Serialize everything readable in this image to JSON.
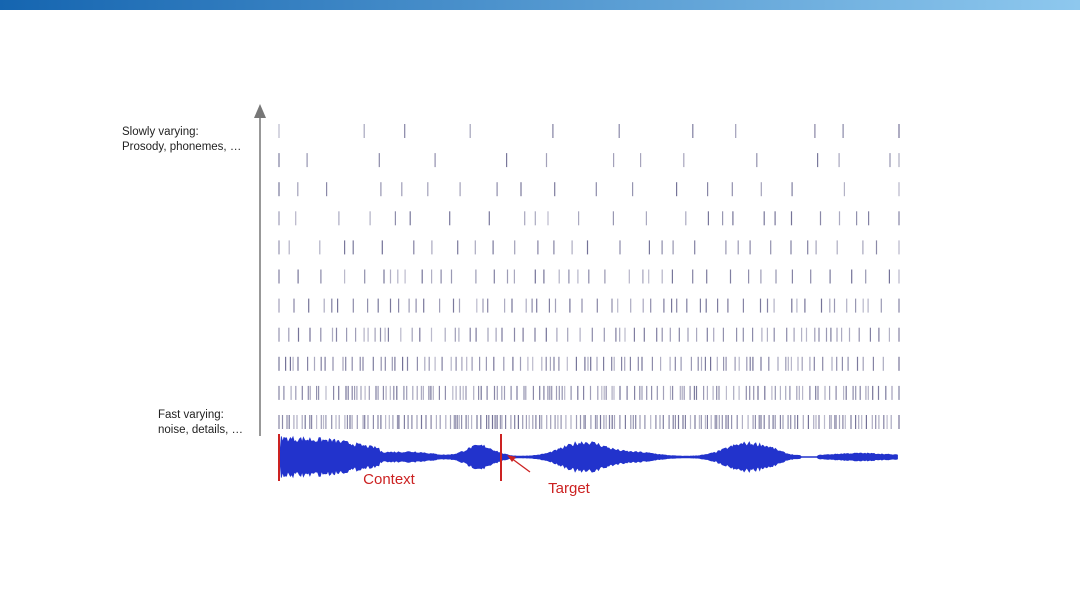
{
  "labels": {
    "slow_title": "Slowly varying:",
    "slow_detail": "Prosody, phonemes, …",
    "fast_title": "Fast varying:",
    "fast_detail": "noise, details, …",
    "context": "Context",
    "target": "Target"
  }
}
